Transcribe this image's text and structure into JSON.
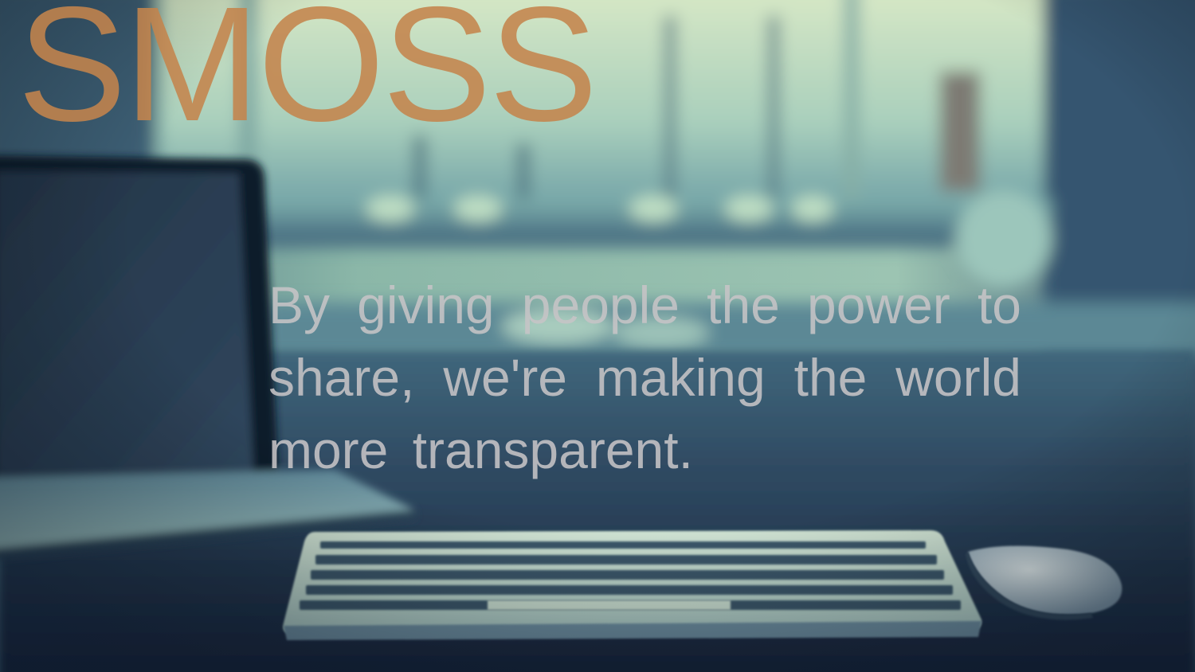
{
  "hero": {
    "brand": "SMOSS",
    "tagline": "By giving people the power to share, we're making the world more transparent."
  },
  "background": {
    "description_icons": [
      "laptop-icon",
      "keyboard-icon",
      "mouse-icon",
      "window-icon"
    ]
  },
  "colors": {
    "brand": "#c4844c",
    "tagline": "#c6c4c6",
    "window_light": "#dcebc8",
    "desk_dark": "#1c2d3f"
  }
}
